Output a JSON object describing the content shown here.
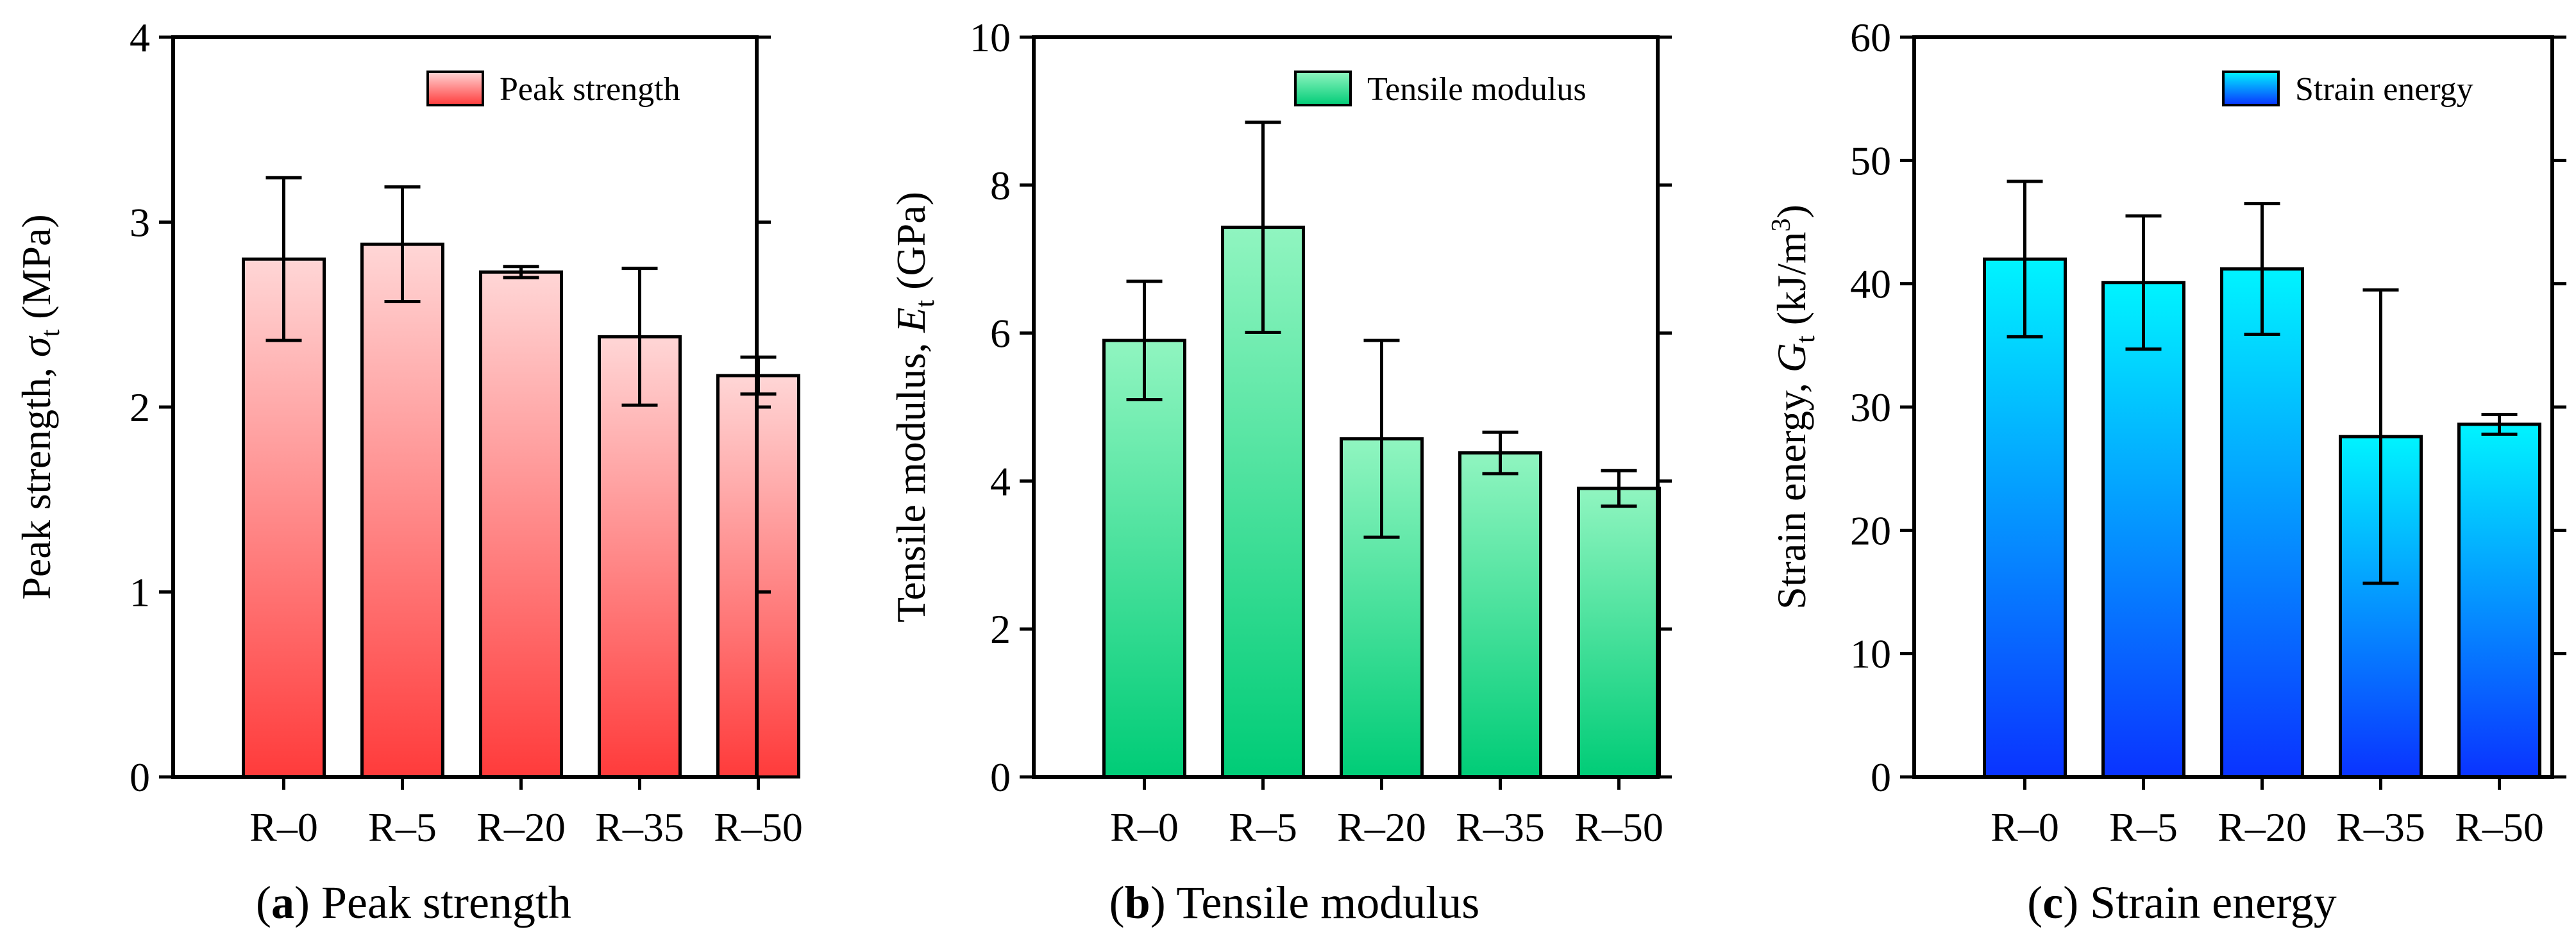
{
  "chart_data": [
    {
      "type": "bar",
      "title": "",
      "categories": [
        "R–0",
        "R–5",
        "R–20",
        "R–35",
        "R–50"
      ],
      "series": [
        {
          "name": "Peak strength",
          "values": [
            2.8,
            2.88,
            2.73,
            2.38,
            2.17
          ],
          "errors": [
            0.44,
            0.31,
            0.03,
            0.37,
            0.1
          ]
        }
      ],
      "ylabel": {
        "main": "Peak strength, ",
        "var": "σ",
        "sub": "t",
        "unit": " (MPa)"
      },
      "ylim": [
        0,
        4
      ],
      "yticks": [
        0,
        1,
        2,
        3,
        4
      ],
      "caption": {
        "letter": "a",
        "text": "Peak strength"
      },
      "colors": {
        "top": "#ffd6d6",
        "bottom": "#ff3b3b"
      }
    },
    {
      "type": "bar",
      "title": "",
      "categories": [
        "R–0",
        "R–5",
        "R–20",
        "R–35",
        "R–50"
      ],
      "series": [
        {
          "name": "Tensile modulus",
          "values": [
            5.9,
            7.43,
            4.57,
            4.38,
            3.9
          ],
          "errors": [
            0.8,
            1.42,
            1.33,
            0.28,
            0.24
          ]
        }
      ],
      "ylabel": {
        "main": "Tensile modulus, ",
        "var": "E",
        "sub": "t",
        "unit": " (GPa)"
      },
      "ylim": [
        0,
        10
      ],
      "yticks": [
        0,
        2,
        4,
        6,
        8,
        10
      ],
      "caption": {
        "letter": "b",
        "text": "Tensile modulus"
      },
      "colors": {
        "top": "#90f5c0",
        "bottom": "#00cc77"
      }
    },
    {
      "type": "bar",
      "title": "",
      "categories": [
        "R–0",
        "R–5",
        "R–20",
        "R–35",
        "R–50"
      ],
      "series": [
        {
          "name": "Strain energy",
          "values": [
            42,
            40.1,
            41.2,
            27.6,
            28.6
          ],
          "errors": [
            6.3,
            5.4,
            5.3,
            11.9,
            0.8
          ]
        }
      ],
      "ylabel": {
        "main": "Strain energy, ",
        "var": "G",
        "sub": "t",
        "unit": " (kJ/m",
        "sup": "3",
        "close": ")"
      },
      "ylim": [
        0,
        60
      ],
      "yticks": [
        0,
        10,
        20,
        30,
        40,
        50,
        60
      ],
      "caption": {
        "letter": "c",
        "text": "Strain energy"
      },
      "colors": {
        "top": "#00f4ff",
        "bottom": "#0a33ff"
      }
    }
  ]
}
